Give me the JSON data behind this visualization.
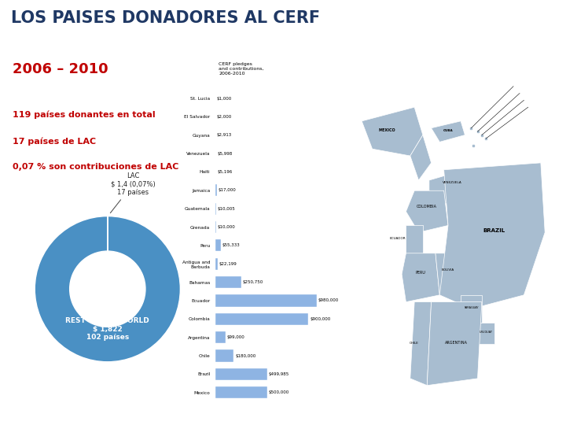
{
  "title": "LOS PAISES DONADORES AL CERF",
  "title_color": "#1F3864",
  "subtitle": "2006 – 2010",
  "subtitle_color": "#C00000",
  "info_lines": [
    "119 países donantes en total",
    "17 países de LAC",
    "0,07 % son contribuciones de LAC"
  ],
  "info_color": "#C00000",
  "donut_slices": [
    0.07,
    99.93
  ],
  "donut_colors": [
    "#5BA3D9",
    "#4A90C4"
  ],
  "lac_label": "LAC\n$ 1,4 (0,07%)\n17 países",
  "world_label": "REST OF THE WORLD\n$ 1,822\n102 países",
  "bar_countries": [
    "St. Lucia",
    "El Salvador",
    "Guyana",
    "Venezuela",
    "Haiti",
    "Jamaica",
    "Guatemala",
    "Grenada",
    "Peru",
    "Antigua and\nBarbuda",
    "Bahamas",
    "Ecuador",
    "Colombia",
    "Argentina",
    "Chile",
    "Brazil",
    "Mexico"
  ],
  "bar_values": [
    1000,
    2000,
    2913,
    5998,
    5196,
    17000,
    10005,
    10000,
    55333,
    22199,
    250750,
    980000,
    900000,
    99000,
    180000,
    499985,
    500000
  ],
  "bar_color": "#8EB4E3",
  "bar_value_labels": [
    "$1,000",
    "$2,000",
    "$2,913",
    "$5,998",
    "$5,196",
    "$17,000",
    "$10,005",
    "$10,000",
    "$55,333",
    "$22,199",
    "$250,750",
    "$980,000",
    "$900,000",
    "$99,000",
    "$180,000",
    "$499,985",
    "$500,000"
  ],
  "map_bg_color": "#C8D8EA",
  "map_country_color": "#A8BDD0",
  "background_color": "#FFFFFF"
}
